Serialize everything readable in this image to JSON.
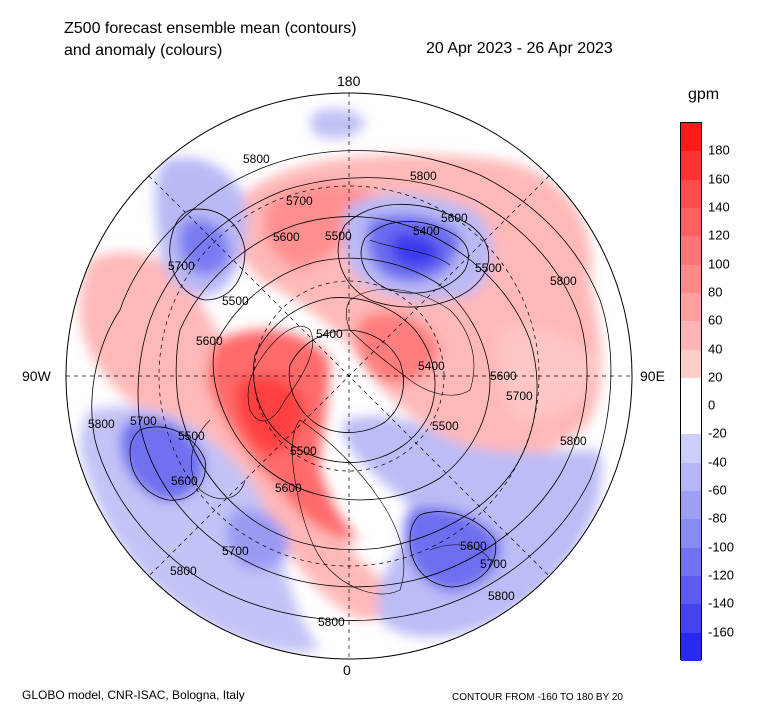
{
  "title": {
    "line1": "Z500 forecast ensemble mean (contours)",
    "line2": "and anomaly (colours)",
    "dates": "20 Apr 2023 - 26 Apr 2023"
  },
  "map": {
    "lon_labels": {
      "top": "180",
      "bottom": "0",
      "left": "90W",
      "right": "90E"
    },
    "contour_labels": [
      "5800",
      "5800",
      "5700",
      "5600",
      "5500",
      "5600",
      "5400",
      "5500",
      "5800",
      "5700",
      "5500",
      "5600",
      "5400",
      "5400",
      "5600",
      "5700",
      "5500",
      "5800",
      "5800",
      "5700",
      "5500",
      "5600",
      "5500",
      "5600",
      "5700",
      "5800",
      "5600",
      "5700",
      "5800",
      "5800"
    ]
  },
  "colorbar": {
    "unit": "gpm",
    "ticks": [
      "180",
      "160",
      "140",
      "120",
      "100",
      "80",
      "60",
      "40",
      "20",
      "0",
      "-20",
      "-40",
      "-60",
      "-80",
      "-100",
      "-120",
      "-140",
      "-160"
    ],
    "colors": [
      "#ff1a1a",
      "#ff3333",
      "#ff4d4d",
      "#ff6060",
      "#ff7575",
      "#ff8a8a",
      "#ff9f9f",
      "#ffb5b5",
      "#ffcccc",
      "#ffffff",
      "#ffffff",
      "#cdcdfa",
      "#b5b5f7",
      "#9f9ff5",
      "#8a8af3",
      "#7373f1",
      "#5b5bef",
      "#4444ee",
      "#2a2aee"
    ]
  },
  "footer": {
    "left": "GLOBO model, CNR-ISAC, Bologna, Italy",
    "right": "CONTOUR FROM -160 TO 180 BY 20"
  }
}
